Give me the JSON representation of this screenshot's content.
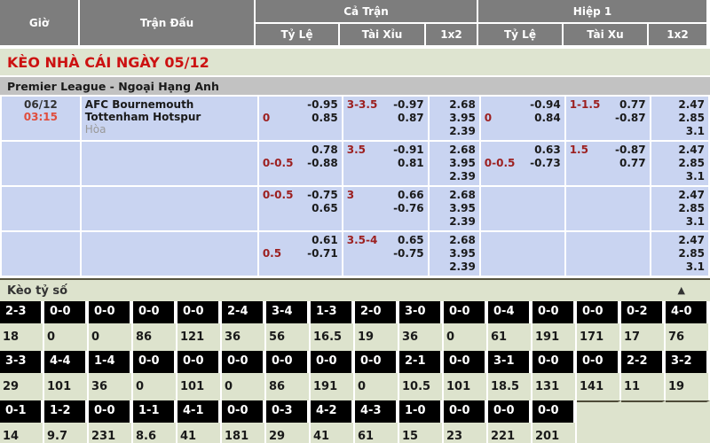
{
  "header": {
    "time_col": "Giờ",
    "match_col": "Trận Đấu",
    "full_match": "Cả Trận",
    "first_half": "Hiệp 1",
    "full_sub": [
      "Tỷ Lệ",
      "Tài Xỉu",
      "1x2"
    ],
    "half_sub": [
      "Tỷ Lệ",
      "Tài Xu",
      "1x2"
    ]
  },
  "banner": {
    "title": "KÈO NHÀ CÁI NGÀY 05/12"
  },
  "league": {
    "name": "Premier League - Ngoại Hạng Anh"
  },
  "match": {
    "date": "06/12",
    "time": "03:15",
    "home": "AFC Bournemouth",
    "away": "Tottenham Hotspur",
    "draw_label": "Hòa"
  },
  "odds_rows": [
    {
      "ft_hdp": {
        "line": "0",
        "line_pos": "bottom",
        "v1": "-0.95",
        "v2": "0.85"
      },
      "ft_ou": {
        "line": "3-3.5",
        "line_pos": "top",
        "v1": "-0.97",
        "v2": "0.87"
      },
      "ft_1x2": [
        "2.68",
        "3.95",
        "2.39"
      ],
      "h1_hdp": {
        "line": "0",
        "line_pos": "bottom",
        "v1": "-0.94",
        "v2": "0.84"
      },
      "h1_ou": {
        "line": "1-1.5",
        "line_pos": "top",
        "v1": "0.77",
        "v2": "-0.87"
      },
      "h1_1x2": [
        "2.47",
        "2.85",
        "3.1"
      ]
    },
    {
      "ft_hdp": {
        "line": "0-0.5",
        "line_pos": "bottom",
        "v1": "0.78",
        "v2": "-0.88"
      },
      "ft_ou": {
        "line": "3.5",
        "line_pos": "top",
        "v1": "-0.91",
        "v2": "0.81"
      },
      "ft_1x2": [
        "2.68",
        "3.95",
        "2.39"
      ],
      "h1_hdp": {
        "line": "0-0.5",
        "line_pos": "bottom",
        "v1": "0.63",
        "v2": "-0.73"
      },
      "h1_ou": {
        "line": "1.5",
        "line_pos": "top",
        "v1": "-0.87",
        "v2": "0.77"
      },
      "h1_1x2": [
        "2.47",
        "2.85",
        "3.1"
      ]
    },
    {
      "ft_hdp": {
        "line": "0-0.5",
        "line_pos": "top",
        "v1": "-0.75",
        "v2": "0.65"
      },
      "ft_ou": {
        "line": "3",
        "line_pos": "top",
        "v1": "0.66",
        "v2": "-0.76"
      },
      "ft_1x2": [
        "2.68",
        "3.95",
        "2.39"
      ],
      "h1_hdp": null,
      "h1_ou": null,
      "h1_1x2": [
        "2.47",
        "2.85",
        "3.1"
      ]
    },
    {
      "ft_hdp": {
        "line": "0.5",
        "line_pos": "bottom",
        "v1": "0.61",
        "v2": "-0.71"
      },
      "ft_ou": {
        "line": "3.5-4",
        "line_pos": "top",
        "v1": "0.65",
        "v2": "-0.75"
      },
      "ft_1x2": [
        "2.68",
        "3.95",
        "2.39"
      ],
      "h1_hdp": null,
      "h1_ou": null,
      "h1_1x2": [
        "2.47",
        "2.85",
        "3.1"
      ]
    }
  ],
  "score_section": {
    "title": "Kèo tỷ số",
    "collapse_icon": "▲",
    "rows": [
      {
        "labels": [
          "2-3",
          "0-0",
          "0-0",
          "0-0",
          "0-0",
          "2-4",
          "3-4",
          "1-3",
          "2-0",
          "3-0",
          "0-0",
          "0-4",
          "0-0",
          "0-0",
          "0-2",
          "4-0"
        ],
        "values": [
          "18",
          "0",
          "0",
          "86",
          "121",
          "36",
          "56",
          "16.5",
          "19",
          "36",
          "0",
          "61",
          "191",
          "171",
          "17",
          "76"
        ]
      },
      {
        "labels": [
          "3-3",
          "4-4",
          "1-4",
          "0-0",
          "0-0",
          "0-0",
          "0-0",
          "0-0",
          "0-0",
          "2-1",
          "0-0",
          "3-1",
          "0-0",
          "0-0",
          "2-2",
          "3-2"
        ],
        "values": [
          "29",
          "101",
          "36",
          "0",
          "101",
          "0",
          "86",
          "191",
          "0",
          "10.5",
          "101",
          "18.5",
          "131",
          "141",
          "11",
          "19"
        ]
      },
      {
        "labels": [
          "0-1",
          "1-2",
          "0-0",
          "1-1",
          "4-1",
          "0-0",
          "0-3",
          "4-2",
          "4-3",
          "1-0",
          "0-0",
          "0-0",
          "0-0",
          "",
          "",
          ""
        ],
        "values": [
          "14",
          "9.7",
          "231",
          "8.6",
          "41",
          "181",
          "29",
          "41",
          "61",
          "15",
          "23",
          "221",
          "201",
          "",
          "",
          ""
        ]
      }
    ],
    "partial_row_cols": 13
  },
  "colors": {
    "header_bg": "#7d7d7d",
    "banner_bg": "#dee4d0",
    "banner_text": "#cc1111",
    "league_bg": "#c2c2c2",
    "odds_cell_bg": "#c9d4f1",
    "handicap_red": "#9c1f1f",
    "time_red": "#e04d3d",
    "score_section_bg": "#dde3cd",
    "score_label_bg": "#000000"
  }
}
